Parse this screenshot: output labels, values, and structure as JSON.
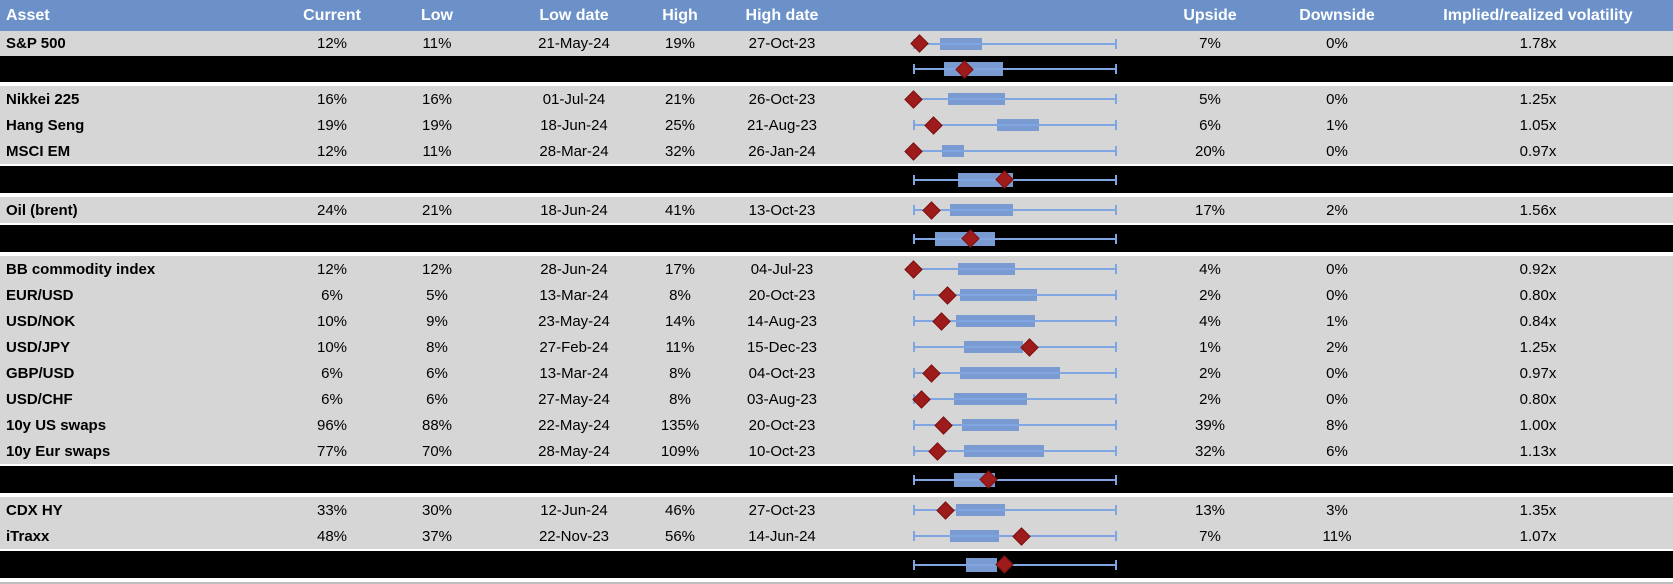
{
  "colors": {
    "header_bg": "#6C91C9",
    "header_text": "#FFFFFF",
    "row_bg": "#D6D6D6",
    "band_bg": "#000000",
    "divider": "#BFBFBF",
    "whisker_blue": "#7FA6E0",
    "box_blue": "#7A9BD2",
    "diamond_red": "#9E1B1B"
  },
  "chart_data": {
    "type": "table",
    "columns": [
      "Asset",
      "Current",
      "Low",
      "Low date",
      "High",
      "High date",
      "Upside",
      "Downside",
      "Implied/realized volatility"
    ],
    "boxplot_note": "Each row shows a horizontal box plot spanning the low-high range: whisker with end caps, blue inter-quartile box, dark-red diamond marker for current level. Positions are percent of whisker span.",
    "rows": [
      {
        "kind": "asset",
        "asset": "S&P 500",
        "current": "12%",
        "low": "11%",
        "low_date": "21-May-24",
        "high": "19%",
        "high_date": "27-Oct-23",
        "upside": "7%",
        "downside": "0%",
        "vol": "1.78x",
        "boxplot": {
          "box_lo": 13,
          "box_hi": 34,
          "marker": 3
        }
      },
      {
        "kind": "aggregate",
        "boxplot": {
          "box_lo": 15,
          "box_hi": 44,
          "marker": 25
        }
      },
      {
        "kind": "asset",
        "asset": "Nikkei 225",
        "current": "16%",
        "low": "16%",
        "low_date": "01-Jul-24",
        "high": "21%",
        "high_date": "26-Oct-23",
        "upside": "5%",
        "downside": "0%",
        "vol": "1.25x",
        "boxplot": {
          "box_lo": 17,
          "box_hi": 45,
          "marker": 0
        }
      },
      {
        "kind": "asset",
        "asset": "Hang Seng",
        "current": "19%",
        "low": "19%",
        "low_date": "18-Jun-24",
        "high": "25%",
        "high_date": "21-Aug-23",
        "upside": "6%",
        "downside": "1%",
        "vol": "1.05x",
        "boxplot": {
          "box_lo": 41,
          "box_hi": 62,
          "marker": 10
        }
      },
      {
        "kind": "asset",
        "asset": "MSCI EM",
        "current": "12%",
        "low": "11%",
        "low_date": "28-Mar-24",
        "high": "32%",
        "high_date": "26-Jan-24",
        "upside": "20%",
        "downside": "0%",
        "vol": "0.97x",
        "boxplot": {
          "box_lo": 14,
          "box_hi": 25,
          "marker": 0
        }
      },
      {
        "kind": "aggregate",
        "boxplot": {
          "box_lo": 22,
          "box_hi": 49,
          "marker": 45
        }
      },
      {
        "kind": "asset",
        "asset": "Oil (brent)",
        "current": "24%",
        "low": "21%",
        "low_date": "18-Jun-24",
        "high": "41%",
        "high_date": "13-Oct-23",
        "upside": "17%",
        "downside": "2%",
        "vol": "1.56x",
        "boxplot": {
          "box_lo": 18,
          "box_hi": 49,
          "marker": 9
        }
      },
      {
        "kind": "aggregate",
        "boxplot": {
          "box_lo": 11,
          "box_hi": 40,
          "marker": 28
        }
      },
      {
        "kind": "asset",
        "asset": "BB commodity index",
        "current": "12%",
        "low": "12%",
        "low_date": "28-Jun-24",
        "high": "17%",
        "high_date": "04-Jul-23",
        "upside": "4%",
        "downside": "0%",
        "vol": "0.92x",
        "boxplot": {
          "box_lo": 22,
          "box_hi": 50,
          "marker": 0
        }
      },
      {
        "kind": "asset",
        "asset": "EUR/USD",
        "current": "6%",
        "low": "5%",
        "low_date": "13-Mar-24",
        "high": "8%",
        "high_date": "20-Oct-23",
        "upside": "2%",
        "downside": "0%",
        "vol": "0.80x",
        "boxplot": {
          "box_lo": 23,
          "box_hi": 61,
          "marker": 17
        }
      },
      {
        "kind": "asset",
        "asset": "USD/NOK",
        "current": "10%",
        "low": "9%",
        "low_date": "23-May-24",
        "high": "14%",
        "high_date": "14-Aug-23",
        "upside": "4%",
        "downside": "1%",
        "vol": "0.84x",
        "boxplot": {
          "box_lo": 21,
          "box_hi": 60,
          "marker": 14
        }
      },
      {
        "kind": "asset",
        "asset": "USD/JPY",
        "current": "10%",
        "low": "8%",
        "low_date": "27-Feb-24",
        "high": "11%",
        "high_date": "15-Dec-23",
        "upside": "1%",
        "downside": "2%",
        "vol": "1.25x",
        "boxplot": {
          "box_lo": 25,
          "box_hi": 54,
          "marker": 57
        }
      },
      {
        "kind": "asset",
        "asset": "GBP/USD",
        "current": "6%",
        "low": "6%",
        "low_date": "13-Mar-24",
        "high": "8%",
        "high_date": "04-Oct-23",
        "upside": "2%",
        "downside": "0%",
        "vol": "0.97x",
        "boxplot": {
          "box_lo": 23,
          "box_hi": 72,
          "marker": 9
        }
      },
      {
        "kind": "asset",
        "asset": "USD/CHF",
        "current": "6%",
        "low": "6%",
        "low_date": "27-May-24",
        "high": "8%",
        "high_date": "03-Aug-23",
        "upside": "2%",
        "downside": "0%",
        "vol": "0.80x",
        "boxplot": {
          "box_lo": 20,
          "box_hi": 56,
          "marker": 4
        }
      },
      {
        "kind": "asset",
        "asset": "10y US swaps",
        "current": "96%",
        "low": "88%",
        "low_date": "22-May-24",
        "high": "135%",
        "high_date": "20-Oct-23",
        "upside": "39%",
        "downside": "8%",
        "vol": "1.00x",
        "boxplot": {
          "box_lo": 24,
          "box_hi": 52,
          "marker": 15
        }
      },
      {
        "kind": "asset",
        "asset": "10y Eur swaps",
        "current": "77%",
        "low": "70%",
        "low_date": "28-May-24",
        "high": "109%",
        "high_date": "10-Oct-23",
        "upside": "32%",
        "downside": "6%",
        "vol": "1.13x",
        "boxplot": {
          "box_lo": 25,
          "box_hi": 64,
          "marker": 12
        }
      },
      {
        "kind": "aggregate",
        "boxplot": {
          "box_lo": 20,
          "box_hi": 40,
          "marker": 37
        }
      },
      {
        "kind": "asset",
        "asset": "CDX HY",
        "current": "33%",
        "low": "30%",
        "low_date": "12-Jun-24",
        "high": "46%",
        "high_date": "27-Oct-23",
        "upside": "13%",
        "downside": "3%",
        "vol": "1.35x",
        "boxplot": {
          "box_lo": 21,
          "box_hi": 45,
          "marker": 16
        }
      },
      {
        "kind": "asset",
        "asset": "iTraxx",
        "current": "48%",
        "low": "37%",
        "low_date": "22-Nov-23",
        "high": "56%",
        "high_date": "14-Jun-24",
        "upside": "7%",
        "downside": "11%",
        "vol": "1.07x",
        "boxplot": {
          "box_lo": 18,
          "box_hi": 42,
          "marker": 53
        }
      },
      {
        "kind": "aggregate",
        "boxplot": {
          "box_lo": 26,
          "box_hi": 41,
          "marker": 45
        }
      }
    ]
  }
}
